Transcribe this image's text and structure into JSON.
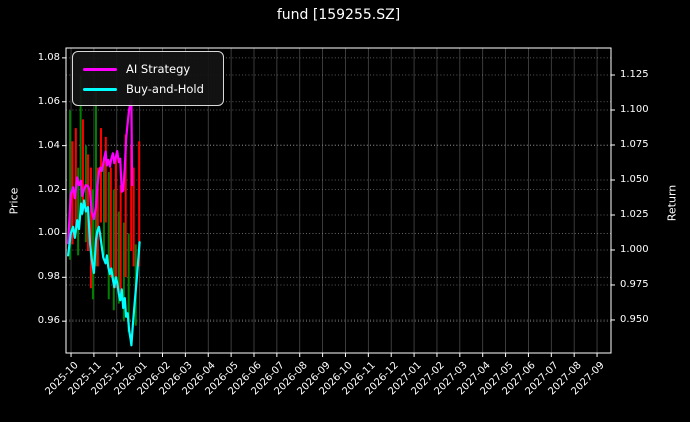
{
  "chart_data": {
    "type": "line",
    "title": "fund [159255.SZ]",
    "xlabel": "",
    "ylabel_left": "Price",
    "ylabel_right": "Return",
    "background_color": "#000000",
    "text_color": "#ffffff",
    "frame_color": "#ffffff",
    "grid_vertical_color": "#4a4a4a",
    "grid_horizontal_color": "#777777",
    "legend_position": "upper-left",
    "grid": "on",
    "x_unit": "month index from 2025-10 tick",
    "x_range_months": [
      -0.22,
      23.61
    ],
    "price_axis_range": [
      0.9455,
      1.0845
    ],
    "return_axis_range": [
      0.9264,
      1.1443
    ],
    "x_tick_labels": [
      "2025-10",
      "2025-11",
      "2025-12",
      "2026-01",
      "2026-02",
      "2026-03",
      "2026-04",
      "2026-05",
      "2026-06",
      "2026-07",
      "2026-08",
      "2026-09",
      "2026-10",
      "2026-11",
      "2026-12",
      "2027-01",
      "2027-02",
      "2027-03",
      "2027-04",
      "2027-05",
      "2027-06",
      "2027-07",
      "2027-08",
      "2027-09"
    ],
    "price_ticks": [
      {
        "v": 1.08,
        "label": "1.08"
      },
      {
        "v": 1.06,
        "label": "1.06"
      },
      {
        "v": 1.04,
        "label": "1.04"
      },
      {
        "v": 1.02,
        "label": "1.02"
      },
      {
        "v": 1.0,
        "label": "1.00"
      },
      {
        "v": 0.98,
        "label": "0.98"
      },
      {
        "v": 0.96,
        "label": "0.96"
      }
    ],
    "return_ticks": [
      {
        "v": 1.125,
        "label": "1.125"
      },
      {
        "v": 1.1,
        "label": "1.100"
      },
      {
        "v": 1.075,
        "label": "1.075"
      },
      {
        "v": 1.05,
        "label": "1.050"
      },
      {
        "v": 1.025,
        "label": "1.025"
      },
      {
        "v": 1.0,
        "label": "1.000"
      },
      {
        "v": 0.975,
        "label": "0.975"
      },
      {
        "v": 0.95,
        "label": "0.950"
      }
    ],
    "bar_colors": {
      "r": "#ff0000",
      "g": "#008000"
    },
    "series": [
      {
        "name": "AI Strategy",
        "color": "#ff00ff",
        "axis": "price",
        "x": [
          -0.13,
          -0.01,
          0.09,
          0.17,
          0.27,
          0.35,
          0.44,
          0.49,
          0.57,
          0.65,
          0.74,
          0.83,
          0.91,
          1.0,
          1.09,
          1.15,
          1.22,
          1.28,
          1.35,
          1.41,
          1.51,
          1.57,
          1.63,
          1.7,
          1.76,
          1.83,
          1.89,
          1.96,
          2.02,
          2.09,
          2.15,
          2.22,
          2.28,
          2.35,
          2.41,
          2.48,
          2.54,
          2.61,
          2.64,
          2.67
        ],
        "y": [
          0.9955,
          1.018,
          1.021,
          1.016,
          1.0255,
          1.022,
          1.024,
          1.017,
          1.02,
          1.022,
          1.0215,
          1.019,
          1.01,
          1.0065,
          1.012,
          1.0215,
          1.0277,
          1.03,
          1.0285,
          1.032,
          1.0373,
          1.031,
          1.0335,
          1.0305,
          1.034,
          1.0365,
          1.032,
          1.035,
          1.0375,
          1.0325,
          1.034,
          1.019,
          1.0195,
          1.03,
          1.043,
          1.0505,
          1.0565,
          1.0595,
          1.0605,
          1.022
        ]
      },
      {
        "name": "Buy-and-Hold",
        "color": "#00ffff",
        "axis": "price",
        "x": [
          -0.13,
          -0.01,
          0.09,
          0.17,
          0.27,
          0.35,
          0.44,
          0.49,
          0.57,
          0.65,
          0.74,
          0.83,
          0.91,
          1.0,
          1.09,
          1.15,
          1.22,
          1.28,
          1.35,
          1.41,
          1.51,
          1.57,
          1.63,
          1.7,
          1.76,
          1.83,
          1.89,
          1.96,
          2.02,
          2.09,
          2.15,
          2.22,
          2.28,
          2.35,
          2.41,
          2.48,
          2.54,
          2.61,
          2.64,
          2.7,
          2.78,
          2.88,
          3.0
        ],
        "y": [
          0.99,
          1.0,
          1.003,
          0.998,
          1.006,
          1.002,
          1.0136,
          1.009,
          1.015,
          1.01,
          1.012,
          0.9955,
          0.988,
          0.982,
          0.997,
          1.001,
          1.003,
          0.999,
          0.9935,
          0.989,
          0.9864,
          0.99,
          0.9845,
          0.9815,
          0.984,
          0.979,
          0.9755,
          0.98,
          0.9775,
          0.9725,
          0.9695,
          0.9745,
          0.966,
          0.9705,
          0.962,
          0.9636,
          0.956,
          0.9515,
          0.949,
          0.958,
          0.968,
          0.98,
          0.996
        ]
      }
    ],
    "range_bars": [
      {
        "x": -0.04,
        "lo": 0.988,
        "hi": 1.056,
        "c": "g"
      },
      {
        "x": 0.06,
        "lo": 0.995,
        "hi": 1.042,
        "c": "r"
      },
      {
        "x": 0.21,
        "lo": 1.0,
        "hi": 1.048,
        "c": "r"
      },
      {
        "x": 0.31,
        "lo": 0.99,
        "hi": 1.03,
        "c": "g"
      },
      {
        "x": 0.42,
        "lo": 1.008,
        "hi": 1.072,
        "c": "g"
      },
      {
        "x": 0.52,
        "lo": 1.01,
        "hi": 1.052,
        "c": "r"
      },
      {
        "x": 0.65,
        "lo": 0.996,
        "hi": 1.04,
        "c": "g"
      },
      {
        "x": 0.74,
        "lo": 0.992,
        "hi": 1.036,
        "c": "r"
      },
      {
        "x": 0.87,
        "lo": 0.975,
        "hi": 1.03,
        "c": "r"
      },
      {
        "x": 0.96,
        "lo": 0.97,
        "hi": 1.02,
        "c": "g"
      },
      {
        "x": 1.09,
        "lo": 0.985,
        "hi": 1.065,
        "c": "g"
      },
      {
        "x": 1.17,
        "lo": 0.985,
        "hi": 1.03,
        "c": "r"
      },
      {
        "x": 1.31,
        "lo": 1.005,
        "hi": 1.048,
        "c": "r"
      },
      {
        "x": 1.44,
        "lo": 0.99,
        "hi": 1.035,
        "c": "g"
      },
      {
        "x": 1.52,
        "lo": 1.005,
        "hi": 1.044,
        "c": "r"
      },
      {
        "x": 1.65,
        "lo": 0.97,
        "hi": 1.028,
        "c": "g"
      },
      {
        "x": 1.74,
        "lo": 0.98,
        "hi": 1.03,
        "c": "r"
      },
      {
        "x": 1.87,
        "lo": 0.965,
        "hi": 1.02,
        "c": "g"
      },
      {
        "x": 1.96,
        "lo": 0.975,
        "hi": 1.035,
        "c": "r"
      },
      {
        "x": 2.09,
        "lo": 0.968,
        "hi": 1.01,
        "c": "g"
      },
      {
        "x": 2.17,
        "lo": 0.972,
        "hi": 1.022,
        "c": "r"
      },
      {
        "x": 2.31,
        "lo": 0.96,
        "hi": 1.005,
        "c": "g"
      },
      {
        "x": 2.39,
        "lo": 0.98,
        "hi": 1.045,
        "c": "r"
      },
      {
        "x": 2.52,
        "lo": 0.955,
        "hi": 1.0,
        "c": "g"
      },
      {
        "x": 2.63,
        "lo": 0.992,
        "hi": 1.04,
        "c": "r"
      },
      {
        "x": 2.74,
        "lo": 0.985,
        "hi": 1.03,
        "c": "r"
      },
      {
        "x": 2.83,
        "lo": 0.958,
        "hi": 0.995,
        "c": "g"
      },
      {
        "x": 2.98,
        "lo": 0.985,
        "hi": 1.042,
        "c": "r"
      }
    ]
  }
}
